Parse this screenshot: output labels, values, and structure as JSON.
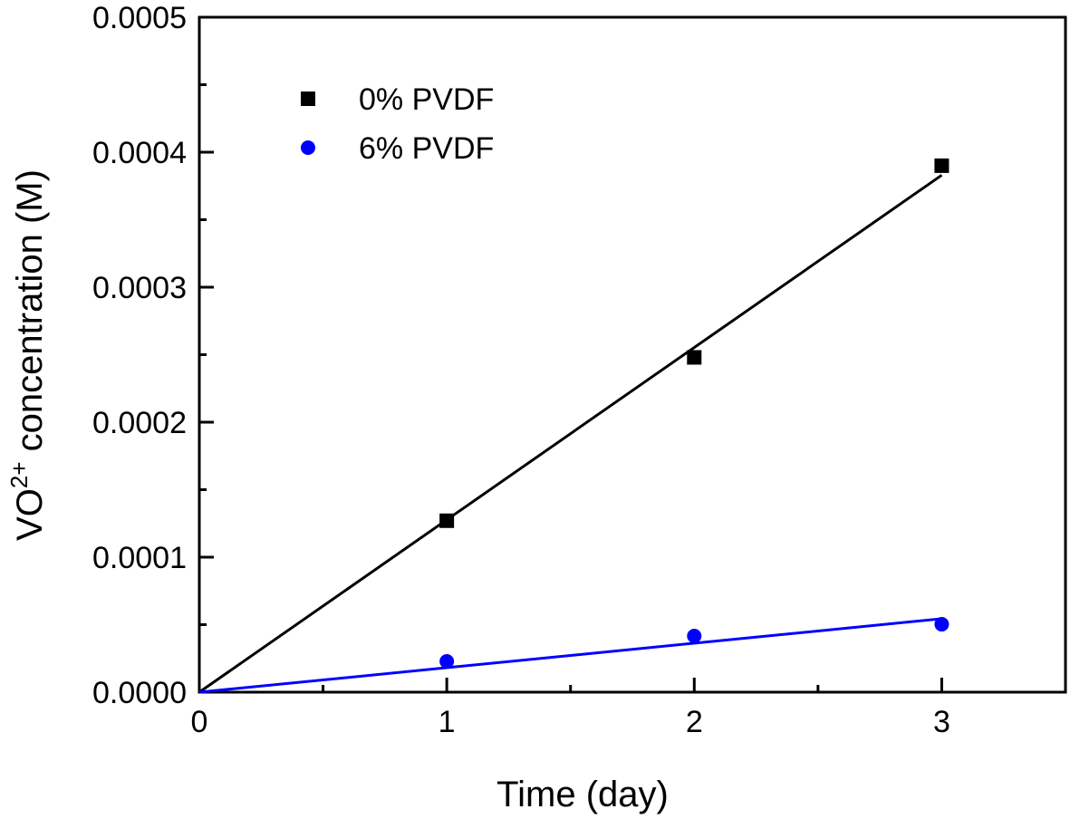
{
  "chart_data": {
    "type": "scatter",
    "title": "",
    "xlabel": "Time (day)",
    "ylabel_main": "VO",
    "ylabel_sup": "2+",
    "ylabel_rest": " concentration (M)",
    "ylabel": "VO2+ concentration (M)",
    "xlim": [
      0,
      3.5
    ],
    "ylim": [
      0,
      0.0005
    ],
    "x_ticks": [
      0,
      1,
      2,
      3
    ],
    "x_tick_labels": [
      "0",
      "1",
      "2",
      "3"
    ],
    "x_minor_ticks": [
      0.5,
      1.5,
      2.5
    ],
    "y_ticks": [
      0,
      0.0001,
      0.0002,
      0.0003,
      0.0004,
      0.0005
    ],
    "y_tick_labels": [
      "0.0000",
      "0.0001",
      "0.0002",
      "0.0003",
      "0.0004",
      "0.0005"
    ],
    "y_minor_ticks": [
      5e-05,
      0.00015,
      0.00025,
      0.00035,
      0.00045
    ],
    "grid": false,
    "legend_position": "top-left",
    "series": [
      {
        "name": "0% PVDF",
        "marker": "square",
        "color": "#000000",
        "x": [
          1,
          2,
          3
        ],
        "y": [
          0.000127,
          0.000248,
          0.00039
        ],
        "fit_line": {
          "x": [
            0,
            3
          ],
          "y": [
            0,
            0.000383
          ]
        }
      },
      {
        "name": "6% PVDF",
        "marker": "circle",
        "color": "#0000ff",
        "x": [
          1,
          2,
          3
        ],
        "y": [
          2.28e-05,
          4.16e-05,
          5.03e-05
        ],
        "fit_line": {
          "x": [
            0,
            3
          ],
          "y": [
            0,
            5.44e-05
          ]
        }
      }
    ]
  }
}
